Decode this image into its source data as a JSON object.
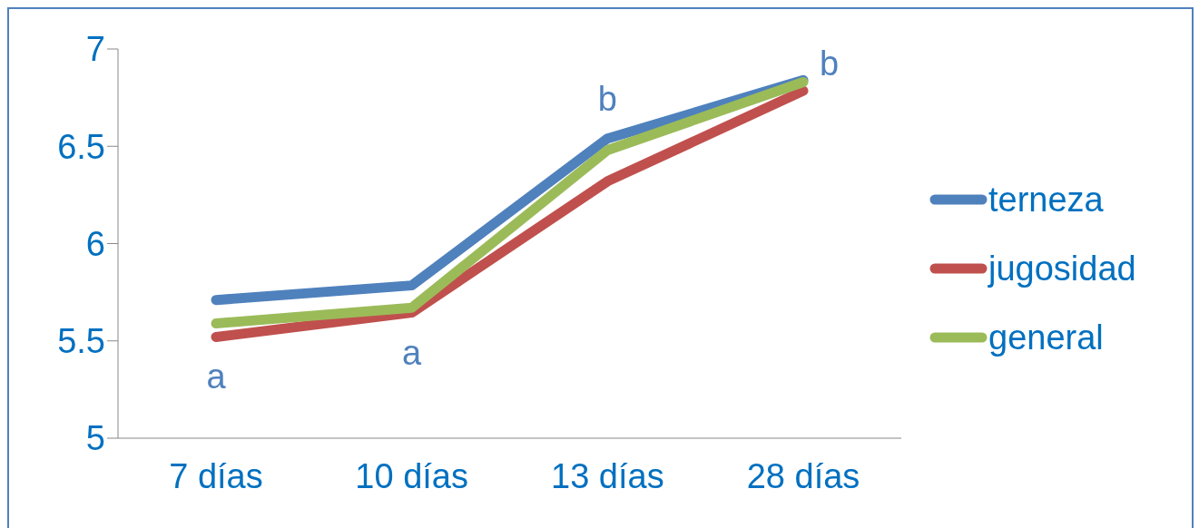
{
  "chart_data": {
    "type": "line",
    "categories": [
      "7 días",
      "10 días",
      "13 días",
      "28 días"
    ],
    "series": [
      {
        "name": "terneza",
        "color": "#4f81bd",
        "values": [
          5.71,
          5.785,
          6.54,
          6.84
        ]
      },
      {
        "name": "jugosidad",
        "color": "#c0504d",
        "values": [
          5.52,
          5.645,
          6.32,
          6.785
        ]
      },
      {
        "name": "general",
        "color": "#9bbb59",
        "values": [
          5.59,
          5.67,
          6.48,
          6.83
        ]
      }
    ],
    "ylim": [
      5,
      7
    ],
    "yticks": [
      5,
      5.5,
      6,
      6.5,
      7
    ],
    "grid": false,
    "legend": "right",
    "marker": "none",
    "line_style": "solid",
    "annotations": [
      {
        "text": "a",
        "x": "7 días",
        "y": 5.52
      },
      {
        "text": "a",
        "x": "10 días",
        "y": 5.645
      },
      {
        "text": "b",
        "x": "13 días",
        "y": 6.54
      },
      {
        "text": "b",
        "x": "28 días",
        "y": 6.84
      }
    ]
  }
}
